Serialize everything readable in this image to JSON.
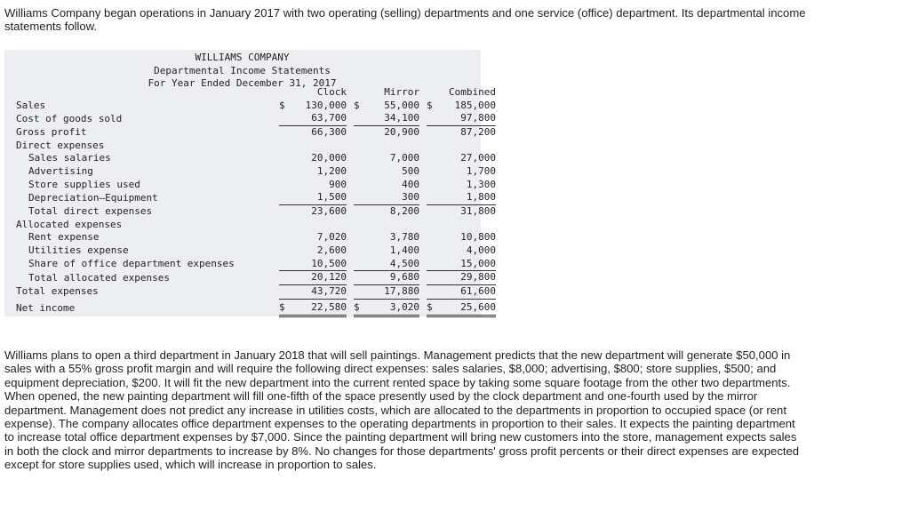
{
  "intro": "Williams Company began operations in January 2017 with two operating (selling) departments and one service (office) department. Its departmental income statements follow.",
  "statement": {
    "company": "WILLIAMS COMPANY",
    "title": "Departmental Income Statements",
    "period": "For Year Ended December 31, 2017",
    "columns": [
      "Clock",
      "Mirror",
      "Combined"
    ],
    "rows": {
      "sales": {
        "label": "Sales",
        "clock": "130,000",
        "mirror": "55,000",
        "combined": "185,000"
      },
      "cogs": {
        "label": "Cost of goods sold",
        "clock": "63,700",
        "mirror": "34,100",
        "combined": "97,800"
      },
      "gross_profit": {
        "label": "Gross profit",
        "clock": "66,300",
        "mirror": "20,900",
        "combined": "87,200"
      },
      "direct_header": {
        "label": "Direct expenses"
      },
      "sales_salaries": {
        "label": "Sales salaries",
        "clock": "20,000",
        "mirror": "7,000",
        "combined": "27,000"
      },
      "advertising": {
        "label": "Advertising",
        "clock": "1,200",
        "mirror": "500",
        "combined": "1,700"
      },
      "store_supplies": {
        "label": "Store supplies used",
        "clock": "900",
        "mirror": "400",
        "combined": "1,300"
      },
      "depreciation": {
        "label": "Depreciation—Equipment",
        "clock": "1,500",
        "mirror": "300",
        "combined": "1,800"
      },
      "total_direct": {
        "label": "Total direct expenses",
        "clock": "23,600",
        "mirror": "8,200",
        "combined": "31,800"
      },
      "allocated_header": {
        "label": "Allocated expenses"
      },
      "rent": {
        "label": "Rent expense",
        "clock": "7,020",
        "mirror": "3,780",
        "combined": "10,800"
      },
      "utilities": {
        "label": "Utilities expense",
        "clock": "2,600",
        "mirror": "1,400",
        "combined": "4,000"
      },
      "office_share": {
        "label": "Share of office department expenses",
        "clock": "10,500",
        "mirror": "4,500",
        "combined": "15,000"
      },
      "total_allocated": {
        "label": "Total allocated expenses",
        "clock": "20,120",
        "mirror": "9,680",
        "combined": "29,800"
      },
      "total_expenses": {
        "label": "Total expenses",
        "clock": "43,720",
        "mirror": "17,880",
        "combined": "61,600"
      },
      "net_income": {
        "label": "Net income",
        "clock": "22,580",
        "mirror": "3,020",
        "combined": "25,600"
      }
    },
    "currency_symbol": "$"
  },
  "plan": "Williams plans to open a third department in January 2018 that will sell paintings. Management predicts that the new department will generate $50,000 in sales with a 55% gross profit margin and will require the following direct expenses: sales salaries, $8,000; advertising, $800; store supplies, $500; and equipment depreciation, $200. It will fit the new department into the current rented space by taking some square footage from the other two departments. When opened, the new painting department will fill one-fifth of the space presently used by the clock department and one-fourth used by the mirror department. Management does not predict any increase in utilities costs, which are allocated to the departments in proportion to occupied space (or rent expense). The company allocates office department expenses to the operating departments in proportion to their sales. It expects the painting department to increase total office department expenses by $7,000. Since the painting department will bring new customers into the store, management expects sales in both the clock and mirror departments to increase by 8%. No changes for those departments' gross profit percents or their direct expenses are expected except for store supplies used, which will increase in proportion to sales."
}
